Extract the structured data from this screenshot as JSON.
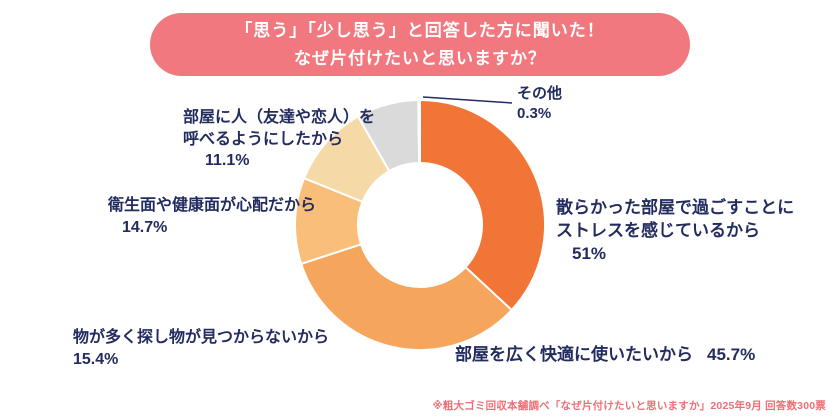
{
  "title": {
    "line1": "「思う」「少し思う」と回答した方に聞いた！",
    "line2": "なぜ片付けたいと思いますか？"
  },
  "chart_data": {
    "type": "pie",
    "subtype": "donut",
    "title": "なぜ片付けたいと思いますか？",
    "note": "multiple-answer survey; slice angles proportional to value sum",
    "start_angle_deg": 0,
    "categories": [
      "散らかった部屋で過ごすことにストレスを感じているから",
      "部屋を広く快適に使いたいから",
      "物が多く探し物が見つからないから",
      "衛生面や健康面が心配だから",
      "部屋に人（友達や恋人）を呼べるようにしたから",
      "その他"
    ],
    "values": [
      51,
      45.7,
      15.4,
      14.7,
      11.1,
      0.3
    ],
    "segments": [
      {
        "label": "散らかった部屋で過ごすことにストレスを感じているから",
        "value": 51,
        "color": "#F17537"
      },
      {
        "label": "部屋を広く快適に使いたいから",
        "value": 45.7,
        "color": "#F6A55C"
      },
      {
        "label": "物が多く探し物が見つからないから",
        "value": 15.4,
        "color": "#F8BE7A"
      },
      {
        "label": "衛生面や健康面が心配だから",
        "value": 14.7,
        "color": "#F5D9A7"
      },
      {
        "label": "部屋に人（友達や恋人）を呼べるようにしたから",
        "value": 11.1,
        "color": "#DADADA"
      },
      {
        "label": "その他",
        "value": 0.3,
        "color": "#C4C4C4"
      }
    ]
  },
  "labels": {
    "other": {
      "name": "その他",
      "pct": "0.3%"
    },
    "invite": {
      "line1": "部屋に人（友達や恋人）を",
      "line2": "呼べるようにしたから",
      "pct": "11.1%"
    },
    "hygiene": {
      "line1": "衛生面や健康面が心配だから",
      "pct": "14.7%"
    },
    "lost": {
      "line1": "物が多く探し物が見つからないから",
      "pct": "15.4%"
    },
    "stress": {
      "line1": "散らかった部屋で過ごすことに",
      "line2": "ストレスを感じているから",
      "pct": "51%"
    },
    "wide": {
      "line1": "部屋を広く快適に使いたいから",
      "pct": "45.7%"
    }
  },
  "footnote": "※粗大ゴミ回収本舗調べ「なぜ片付けたいと思いますか」2025年9月 回答数300票",
  "colors": {
    "banner_bg": "#F1787E",
    "label_text": "#232C5F",
    "footnote_text": "#EE6E76"
  }
}
